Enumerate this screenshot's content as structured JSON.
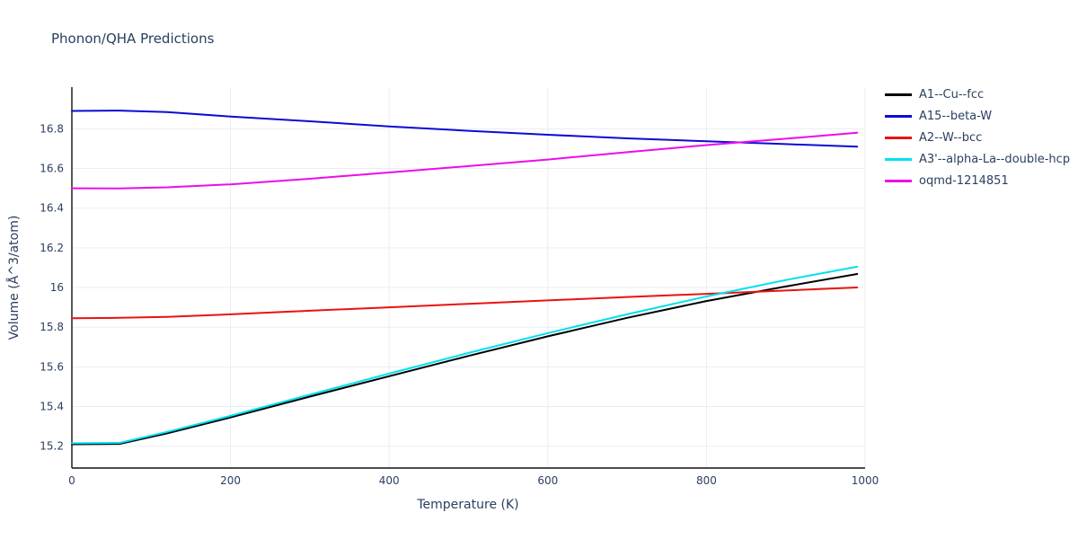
{
  "chart_data": {
    "type": "line",
    "title": "Phonon/QHA Predictions",
    "xlabel": "Temperature (K)",
    "ylabel": "Volume (Å^3/atom)",
    "xlim": [
      0,
      1000
    ],
    "ylim": [
      15.09,
      17.01
    ],
    "x_ticks": [
      0,
      200,
      400,
      600,
      800,
      1000
    ],
    "y_ticks": [
      15.2,
      15.4,
      15.6,
      15.8,
      16,
      16.2,
      16.4,
      16.6,
      16.8
    ],
    "grid": true,
    "legend_position": "top-right",
    "x": [
      0,
      60,
      120,
      200,
      300,
      400,
      500,
      600,
      700,
      800,
      900,
      990
    ],
    "series": [
      {
        "name": "A1--Cu--fcc",
        "color": "#000000",
        "values": [
          15.21,
          15.212,
          15.265,
          15.345,
          15.45,
          15.553,
          15.655,
          15.754,
          15.847,
          15.932,
          16.005,
          16.068
        ]
      },
      {
        "name": "A15--beta-W",
        "color": "#0b0bd6",
        "values": [
          16.89,
          16.892,
          16.884,
          16.862,
          16.838,
          16.812,
          16.79,
          16.77,
          16.752,
          16.737,
          16.723,
          16.71
        ]
      },
      {
        "name": "A2--W--bcc",
        "color": "#ea1212",
        "values": [
          15.845,
          15.847,
          15.852,
          15.865,
          15.883,
          15.9,
          15.918,
          15.935,
          15.952,
          15.968,
          15.985,
          16.0
        ]
      },
      {
        "name": "A3'--alpha-La--double-hcp",
        "color": "#00e0ee",
        "values": [
          15.215,
          15.217,
          15.272,
          15.353,
          15.46,
          15.566,
          15.67,
          15.77,
          15.865,
          15.955,
          16.038,
          16.105
        ]
      },
      {
        "name": "oqmd-1214851",
        "color": "#ec0cec",
        "values": [
          16.5,
          16.499,
          16.505,
          16.52,
          16.548,
          16.58,
          16.612,
          16.645,
          16.682,
          16.718,
          16.75,
          16.78
        ]
      }
    ]
  }
}
